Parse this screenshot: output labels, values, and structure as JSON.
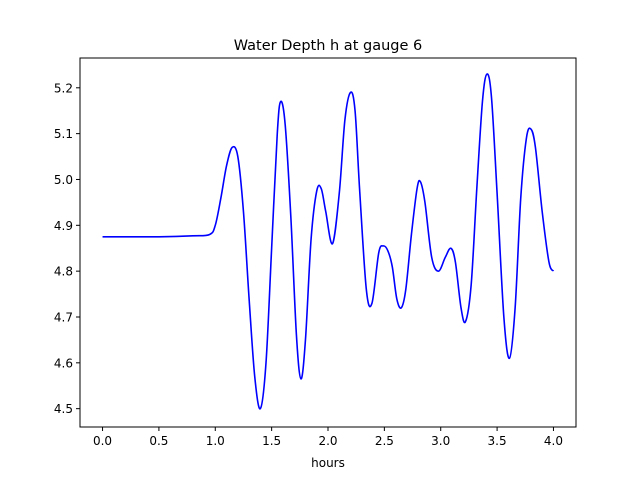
{
  "chart_data": {
    "type": "line",
    "title": "Water Depth h at gauge 6",
    "xlabel": "hours",
    "ylabel": "",
    "xlim": [
      -0.2,
      4.2
    ],
    "ylim": [
      4.46,
      5.265
    ],
    "xticks": [
      0.0,
      0.5,
      1.0,
      1.5,
      2.0,
      2.5,
      3.0,
      3.5,
      4.0
    ],
    "xtick_labels": [
      "0.0",
      "0.5",
      "1.0",
      "1.5",
      "2.0",
      "2.5",
      "3.0",
      "3.5",
      "4.0"
    ],
    "yticks": [
      4.5,
      4.6,
      4.7,
      4.8,
      4.9,
      5.0,
      5.1,
      5.2
    ],
    "ytick_labels": [
      "4.5",
      "4.6",
      "4.7",
      "4.8",
      "4.9",
      "5.0",
      "5.1",
      "5.2"
    ],
    "grid": false,
    "series_color": "#0000ff",
    "series": [
      {
        "x": [
          0.0,
          0.5,
          0.8,
          0.95,
          1.0,
          1.05,
          1.1,
          1.15,
          1.2,
          1.25,
          1.3,
          1.35,
          1.4,
          1.45,
          1.5,
          1.55,
          1.58,
          1.62,
          1.67,
          1.72,
          1.76,
          1.8,
          1.85,
          1.9,
          1.94,
          1.98,
          2.04,
          2.1,
          2.15,
          2.2,
          2.24,
          2.28,
          2.34,
          2.39,
          2.45,
          2.49,
          2.53,
          2.57,
          2.61,
          2.65,
          2.69,
          2.74,
          2.79,
          2.82,
          2.86,
          2.92,
          2.98,
          3.04,
          3.09,
          3.13,
          3.18,
          3.22,
          3.27,
          3.32,
          3.37,
          3.41,
          3.45,
          3.5,
          3.56,
          3.61,
          3.66,
          3.71,
          3.76,
          3.8,
          3.84,
          3.9,
          3.96,
          4.0
        ],
        "y": [
          4.875,
          4.875,
          4.877,
          4.88,
          4.9,
          4.96,
          5.03,
          5.07,
          5.05,
          4.93,
          4.74,
          4.57,
          4.5,
          4.6,
          4.85,
          5.1,
          5.17,
          5.12,
          4.92,
          4.66,
          4.565,
          4.65,
          4.87,
          4.975,
          4.98,
          4.93,
          4.86,
          4.97,
          5.13,
          5.19,
          5.15,
          4.98,
          4.76,
          4.73,
          4.84,
          4.855,
          4.845,
          4.81,
          4.74,
          4.72,
          4.76,
          4.88,
          4.98,
          4.995,
          4.95,
          4.83,
          4.8,
          4.83,
          4.85,
          4.82,
          4.72,
          4.69,
          4.77,
          4.98,
          5.17,
          5.23,
          5.18,
          4.97,
          4.7,
          4.61,
          4.72,
          4.96,
          5.09,
          5.11,
          5.07,
          4.93,
          4.82,
          4.8
        ]
      }
    ]
  }
}
